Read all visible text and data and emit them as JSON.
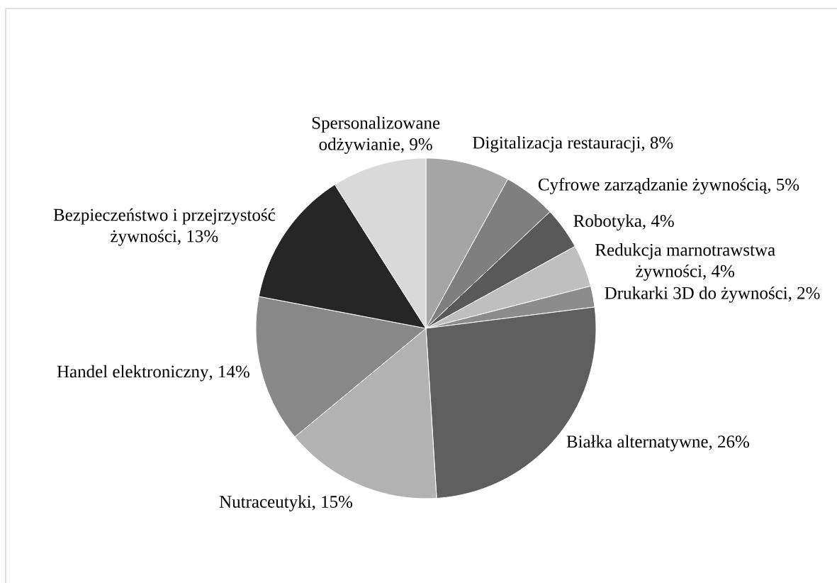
{
  "chart_data": {
    "type": "pie",
    "categories": [
      "Digitalizacja restauracji",
      "Cyfrowe zarządzanie żywnością",
      "Robotyka",
      "Redukcja marnotrawstwa żywności",
      "Drukarki 3D do żywności",
      "Białka alternatywne",
      "Nutraceutyki",
      "Handel elektroniczny",
      "Bezpieczeństwo i przejrzystość żywności",
      "Spersonalizowane odżywianie"
    ],
    "values": [
      8,
      5,
      4,
      4,
      2,
      26,
      15,
      14,
      13,
      9
    ],
    "value_labels": [
      ", 8%",
      ", 5%",
      ", 4%",
      ", 4%",
      ", 2%",
      ", 26%",
      ", 15%",
      ", 14%",
      ", 13%",
      ", 9%"
    ],
    "colors": [
      "#a5a5a5",
      "#7f7f7f",
      "#595959",
      "#bfbfbf",
      "#8c8c8c",
      "#5f5f5f",
      "#b2b2b2",
      "#888888",
      "#262626",
      "#d9d9d9"
    ]
  }
}
